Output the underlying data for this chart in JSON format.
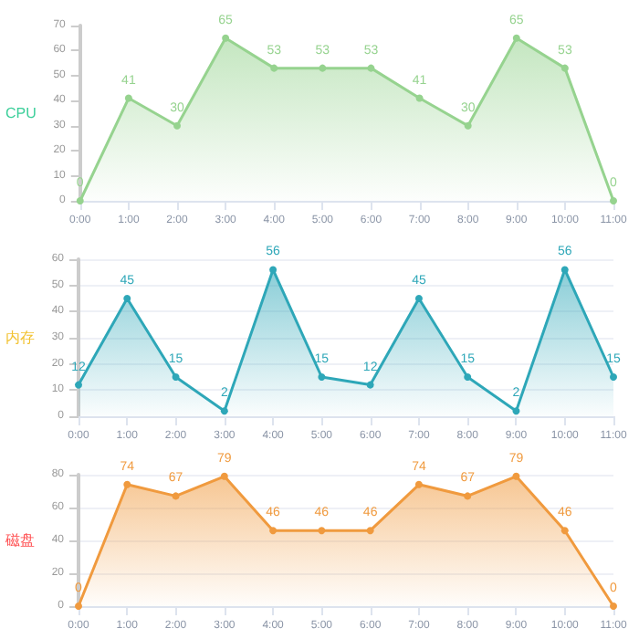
{
  "chart_data": [
    {
      "type": "area",
      "ylabel": "CPU",
      "categories": [
        "0:00",
        "1:00",
        "2:00",
        "3:00",
        "4:00",
        "5:00",
        "6:00",
        "7:00",
        "8:00",
        "9:00",
        "10:00",
        "11:00"
      ],
      "series": [
        {
          "color": "#96d38f",
          "values": [
            0,
            41,
            30,
            65,
            53,
            53,
            53,
            41,
            30,
            65,
            53,
            0
          ]
        }
      ],
      "ylim": [
        0,
        70
      ],
      "yticks": [
        0,
        10,
        20,
        30,
        40,
        50,
        60,
        70
      ],
      "grid": false,
      "data_labels": true,
      "marker": "circle"
    },
    {
      "type": "area",
      "ylabel": "内存",
      "categories": [
        "0:00",
        "1:00",
        "2:00",
        "3:00",
        "4:00",
        "5:00",
        "6:00",
        "7:00",
        "8:00",
        "9:00",
        "10:00",
        "11:00"
      ],
      "series": [
        {
          "color": "#2ea7b8",
          "values": [
            12,
            45,
            15,
            2,
            56,
            15,
            12,
            45,
            15,
            2,
            56,
            15
          ]
        }
      ],
      "ylim": [
        0,
        60
      ],
      "yticks": [
        0,
        10,
        20,
        30,
        40,
        50,
        60
      ],
      "grid": "y",
      "data_labels": true,
      "marker": "circle"
    },
    {
      "type": "area",
      "ylabel": "磁盘",
      "categories": [
        "0:00",
        "1:00",
        "2:00",
        "3:00",
        "4:00",
        "5:00",
        "6:00",
        "7:00",
        "8:00",
        "9:00",
        "10:00",
        "11:00"
      ],
      "series": [
        {
          "color": "#f09a3e",
          "values": [
            0,
            74,
            67,
            79,
            46,
            46,
            46,
            74,
            67,
            79,
            46,
            0
          ]
        }
      ],
      "ylim": [
        0,
        80
      ],
      "yticks": [
        0,
        20,
        40,
        60,
        80
      ],
      "grid": "y",
      "data_labels": true,
      "marker": "circle"
    }
  ]
}
